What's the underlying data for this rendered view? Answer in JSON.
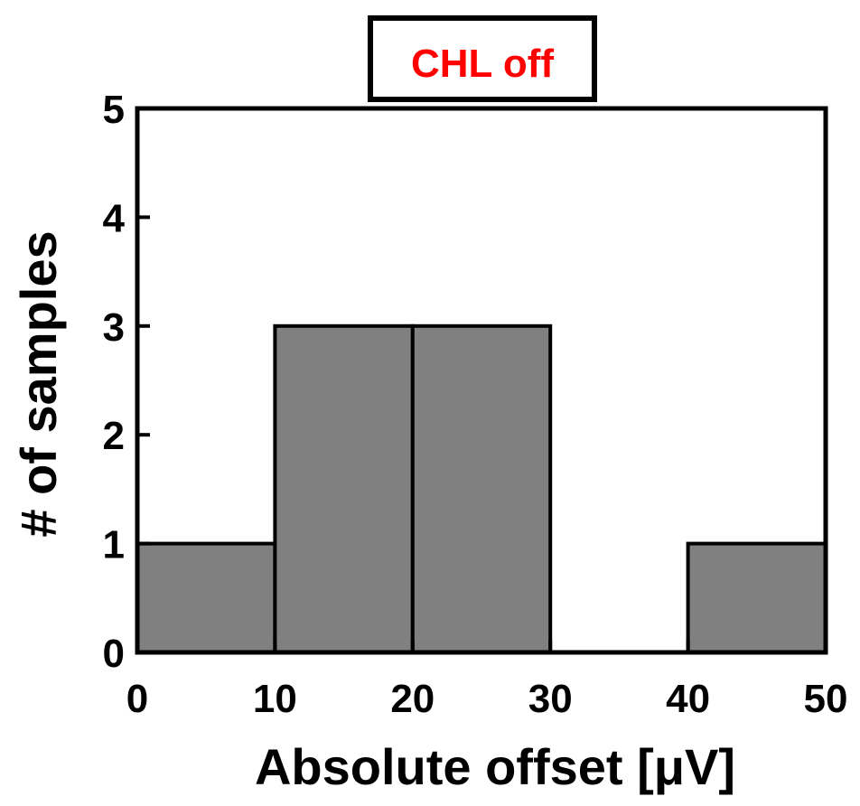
{
  "chart_data": {
    "type": "bar",
    "title": "CHL off",
    "xlabel": "Absolute offset [μV]",
    "ylabel": "# of samples",
    "bins": [
      {
        "x0": 0,
        "x1": 10,
        "value": 1
      },
      {
        "x0": 10,
        "x1": 20,
        "value": 3
      },
      {
        "x0": 20,
        "x1": 30,
        "value": 3
      },
      {
        "x0": 30,
        "x1": 40,
        "value": 0
      },
      {
        "x0": 40,
        "x1": 50,
        "value": 1
      }
    ],
    "xlim": [
      0,
      50
    ],
    "ylim": [
      0,
      5
    ],
    "xticks": [
      "0",
      "10",
      "20",
      "30",
      "40",
      "50"
    ],
    "yticks": [
      "0",
      "1",
      "2",
      "3",
      "4",
      "5"
    ],
    "grid": false,
    "colors": {
      "bar_fill": "#808080",
      "bar_stroke": "#000000",
      "title_color": "#ff0000"
    }
  }
}
